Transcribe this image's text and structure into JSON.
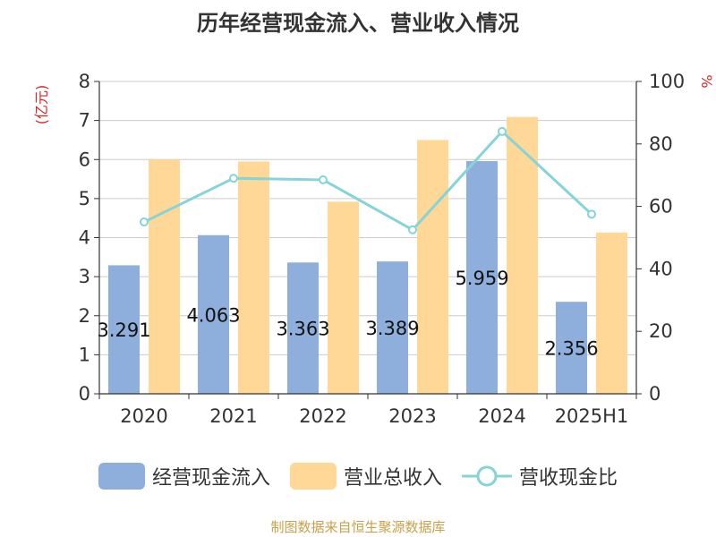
{
  "chart_data": {
    "type": "bar",
    "title": "历年经营现金流入、营业收入情况",
    "categories": [
      "2020",
      "2021",
      "2022",
      "2023",
      "2024",
      "2025H1"
    ],
    "y_left": {
      "label": "(亿元)",
      "ticks": [
        0,
        1,
        2,
        3,
        4,
        5,
        6,
        7,
        8
      ],
      "range": [
        0,
        8
      ]
    },
    "y_right": {
      "label": "%",
      "ticks": [
        0,
        20,
        40,
        60,
        80,
        100
      ],
      "range": [
        0,
        100
      ]
    },
    "series": [
      {
        "name": "经营现金流入",
        "kind": "bar",
        "axis": "left",
        "color": "#8eaedb",
        "values": [
          3.291,
          4.063,
          3.363,
          3.389,
          5.959,
          2.356
        ],
        "labels": [
          "3.291",
          "4.063",
          "3.363",
          "3.389",
          "5.959",
          "2.356"
        ]
      },
      {
        "name": "营业总收入",
        "kind": "bar",
        "axis": "left",
        "color": "#ffd796",
        "values": [
          6.0,
          5.95,
          4.92,
          6.5,
          7.09,
          4.13
        ]
      },
      {
        "name": "营收现金比",
        "kind": "line",
        "axis": "right",
        "color": "#86d4d8",
        "values": [
          55,
          69,
          68.5,
          52.5,
          84,
          57.5
        ]
      }
    ],
    "grid": true,
    "legend_position": "bottom"
  },
  "source_note": "制图数据来自恒生聚源数据库"
}
